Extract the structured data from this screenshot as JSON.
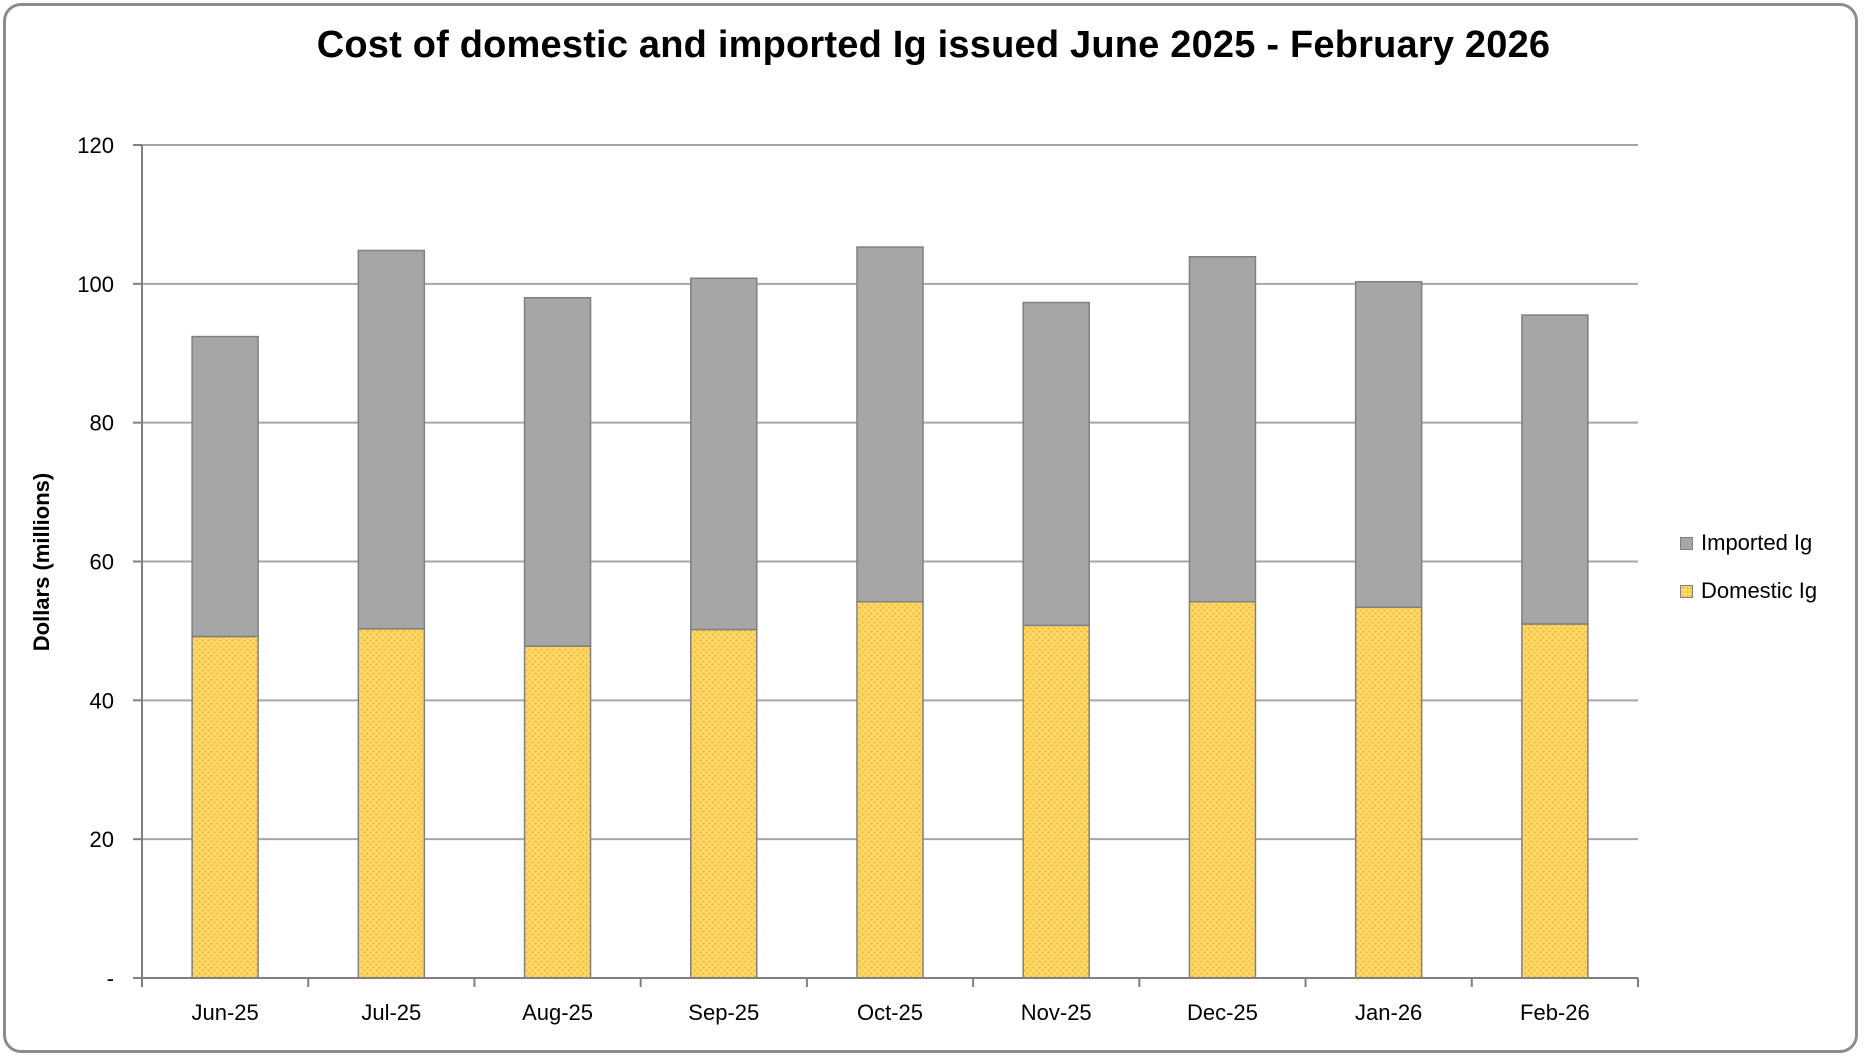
{
  "chart_data": {
    "type": "bar",
    "stacked": true,
    "title": "Cost of domestic and imported Ig issued June 2025 - February 2026",
    "xlabel": "",
    "ylabel": "Dollars (millions)",
    "ylim": [
      0,
      120
    ],
    "yticks": [
      0,
      20,
      40,
      60,
      80,
      100,
      120
    ],
    "ytick_labels": [
      "-",
      "20",
      "40",
      "60",
      "80",
      "100",
      "120"
    ],
    "grid": true,
    "legend_position": "right",
    "categories": [
      "Jun-25",
      "Jul-25",
      "Aug-25",
      "Sep-25",
      "Oct-25",
      "Nov-25",
      "Dec-25",
      "Jan-26",
      "Feb-26"
    ],
    "series": [
      {
        "name": "Domestic Ig",
        "color": "#ffd966",
        "pattern_color": "#f3b33f",
        "values": [
          49.2,
          50.3,
          47.8,
          50.2,
          54.2,
          50.8,
          54.2,
          53.4,
          51.0
        ]
      },
      {
        "name": "Imported Ig",
        "color": "#a6a6a6",
        "values": [
          43.2,
          54.5,
          50.2,
          50.6,
          51.1,
          46.5,
          49.7,
          46.9,
          44.5
        ]
      }
    ],
    "legend_order": [
      "Imported Ig",
      "Domestic Ig"
    ]
  }
}
